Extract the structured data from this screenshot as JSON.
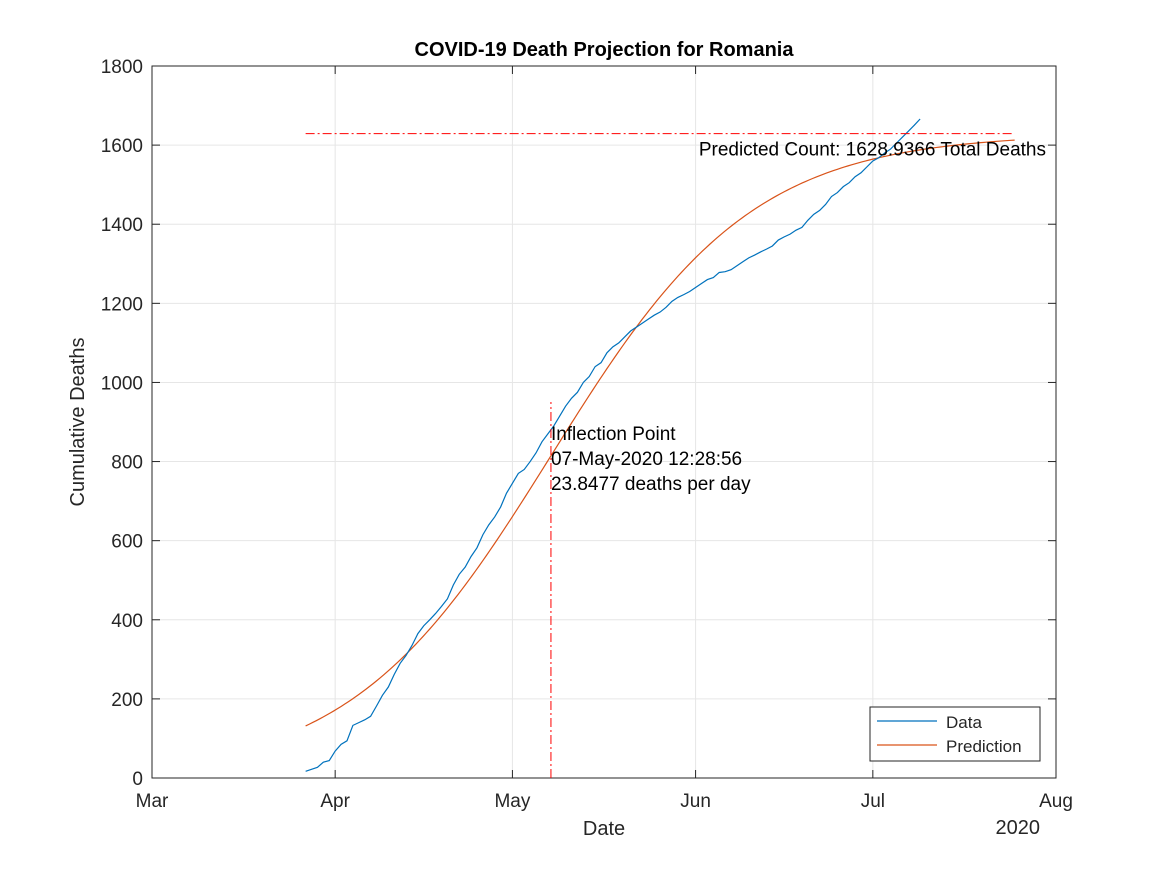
{
  "chart_data": {
    "type": "line",
    "title": "COVID-19 Death Projection for Romania",
    "xlabel": "Date",
    "ylabel": "Cumulative Deaths",
    "x_year_label": "2020",
    "x_ticks": [
      {
        "date": "2020-03-01",
        "label": "Mar"
      },
      {
        "date": "2020-04-01",
        "label": "Apr"
      },
      {
        "date": "2020-05-01",
        "label": "May"
      },
      {
        "date": "2020-06-01",
        "label": "Jun"
      },
      {
        "date": "2020-07-01",
        "label": "Jul"
      },
      {
        "date": "2020-08-01",
        "label": "Aug"
      }
    ],
    "xlim": [
      "2020-03-01",
      "2020-08-01"
    ],
    "ylim": [
      0,
      1800
    ],
    "y_ticks": [
      0,
      200,
      400,
      600,
      800,
      1000,
      1200,
      1400,
      1600,
      1800
    ],
    "grid": true,
    "legend": {
      "placement": "bottom-right",
      "entries": [
        "Data",
        "Prediction"
      ]
    },
    "colors": {
      "data": "#0072BD",
      "prediction": "#D95319",
      "reference": "#FF0000",
      "grid": "#E6E6E6",
      "axis": "#262626"
    },
    "series": [
      {
        "name": "Data",
        "points": [
          [
            "2020-03-27",
            17
          ],
          [
            "2020-03-28",
            22
          ],
          [
            "2020-03-29",
            27
          ],
          [
            "2020-03-30",
            40
          ],
          [
            "2020-03-31",
            44
          ],
          [
            "2020-04-01",
            68
          ],
          [
            "2020-04-02",
            85
          ],
          [
            "2020-04-03",
            94
          ],
          [
            "2020-04-04",
            133
          ],
          [
            "2020-04-05",
            140
          ],
          [
            "2020-04-06",
            147
          ],
          [
            "2020-04-07",
            156
          ],
          [
            "2020-04-08",
            182
          ],
          [
            "2020-04-09",
            209
          ],
          [
            "2020-04-10",
            230
          ],
          [
            "2020-04-11",
            262
          ],
          [
            "2020-04-12",
            290
          ],
          [
            "2020-04-13",
            310
          ],
          [
            "2020-04-14",
            335
          ],
          [
            "2020-04-15",
            365
          ],
          [
            "2020-04-16",
            385
          ],
          [
            "2020-04-17",
            400
          ],
          [
            "2020-04-18",
            416
          ],
          [
            "2020-04-19",
            434
          ],
          [
            "2020-04-20",
            453
          ],
          [
            "2020-04-21",
            488
          ],
          [
            "2020-04-22",
            515
          ],
          [
            "2020-04-23",
            533
          ],
          [
            "2020-04-24",
            560
          ],
          [
            "2020-04-25",
            582
          ],
          [
            "2020-04-26",
            615
          ],
          [
            "2020-04-27",
            640
          ],
          [
            "2020-04-28",
            660
          ],
          [
            "2020-04-29",
            685
          ],
          [
            "2020-04-30",
            720
          ],
          [
            "2020-05-01",
            745
          ],
          [
            "2020-05-02",
            770
          ],
          [
            "2020-05-03",
            780
          ],
          [
            "2020-05-04",
            800
          ],
          [
            "2020-05-05",
            822
          ],
          [
            "2020-05-06",
            850
          ],
          [
            "2020-05-07",
            870
          ],
          [
            "2020-05-08",
            890
          ],
          [
            "2020-05-09",
            915
          ],
          [
            "2020-05-10",
            940
          ],
          [
            "2020-05-11",
            960
          ],
          [
            "2020-05-12",
            975
          ],
          [
            "2020-05-13",
            1000
          ],
          [
            "2020-05-14",
            1015
          ],
          [
            "2020-05-15",
            1040
          ],
          [
            "2020-05-16",
            1050
          ],
          [
            "2020-05-17",
            1075
          ],
          [
            "2020-05-18",
            1090
          ],
          [
            "2020-05-19",
            1100
          ],
          [
            "2020-05-20",
            1115
          ],
          [
            "2020-05-21",
            1130
          ],
          [
            "2020-05-22",
            1140
          ],
          [
            "2020-05-23",
            1150
          ],
          [
            "2020-05-24",
            1160
          ],
          [
            "2020-05-25",
            1170
          ],
          [
            "2020-05-26",
            1178
          ],
          [
            "2020-05-27",
            1190
          ],
          [
            "2020-05-28",
            1205
          ],
          [
            "2020-05-29",
            1215
          ],
          [
            "2020-05-30",
            1222
          ],
          [
            "2020-05-31",
            1230
          ],
          [
            "2020-06-01",
            1240
          ],
          [
            "2020-06-02",
            1250
          ],
          [
            "2020-06-03",
            1260
          ],
          [
            "2020-06-04",
            1265
          ],
          [
            "2020-06-05",
            1278
          ],
          [
            "2020-06-06",
            1280
          ],
          [
            "2020-06-07",
            1285
          ],
          [
            "2020-06-08",
            1295
          ],
          [
            "2020-06-09",
            1305
          ],
          [
            "2020-06-10",
            1315
          ],
          [
            "2020-06-11",
            1322
          ],
          [
            "2020-06-12",
            1330
          ],
          [
            "2020-06-13",
            1337
          ],
          [
            "2020-06-14",
            1345
          ],
          [
            "2020-06-15",
            1360
          ],
          [
            "2020-06-16",
            1368
          ],
          [
            "2020-06-17",
            1375
          ],
          [
            "2020-06-18",
            1385
          ],
          [
            "2020-06-19",
            1392
          ],
          [
            "2020-06-20",
            1410
          ],
          [
            "2020-06-21",
            1425
          ],
          [
            "2020-06-22",
            1435
          ],
          [
            "2020-06-23",
            1450
          ],
          [
            "2020-06-24",
            1470
          ],
          [
            "2020-06-25",
            1480
          ],
          [
            "2020-06-26",
            1495
          ],
          [
            "2020-06-27",
            1505
          ],
          [
            "2020-06-28",
            1520
          ],
          [
            "2020-06-29",
            1530
          ],
          [
            "2020-06-30",
            1545
          ],
          [
            "2020-07-01",
            1560
          ],
          [
            "2020-07-02",
            1568
          ],
          [
            "2020-07-03",
            1580
          ],
          [
            "2020-07-04",
            1590
          ],
          [
            "2020-07-05",
            1605
          ],
          [
            "2020-07-06",
            1620
          ],
          [
            "2020-07-07",
            1635
          ],
          [
            "2020-07-08",
            1650
          ],
          [
            "2020-07-09",
            1666
          ]
        ]
      },
      {
        "name": "Prediction",
        "model": "logistic",
        "K": 1628.9366,
        "inflection_date": "2020-05-07T12:28:56",
        "peak_rate": 23.8477,
        "start": "2020-03-27",
        "end": "2020-07-25"
      }
    ],
    "annotations": {
      "count_line": {
        "value": 1628.9366,
        "from": "2020-03-27",
        "to": "2020-07-25"
      },
      "count_label": "Predicted Count: 1628.9366 Total Deaths",
      "inflection_line": {
        "date": "2020-05-07T12:28:56",
        "to_value": 900
      },
      "inflection_lines": [
        "Inflection Point",
        "07-May-2020 12:28:56",
        "23.8477 deaths per day"
      ]
    }
  }
}
